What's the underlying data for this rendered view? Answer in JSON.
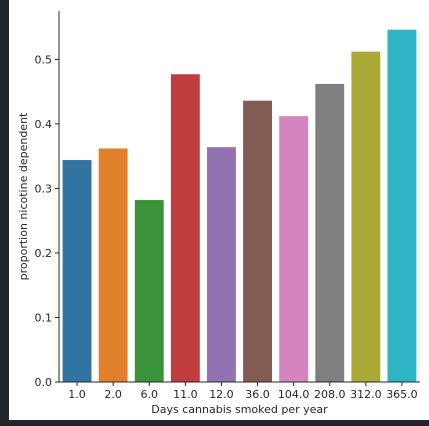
{
  "chart_data": {
    "type": "bar",
    "xlabel": "Days cannabis smoked per year",
    "ylabel": "proportion nicotine dependent",
    "categories": [
      "1.0",
      "2.0",
      "6.0",
      "11.0",
      "12.0",
      "36.0",
      "104.0",
      "208.0",
      "312.0",
      "365.0"
    ],
    "values": [
      0.344,
      0.362,
      0.282,
      0.477,
      0.364,
      0.436,
      0.412,
      0.462,
      0.512,
      0.546
    ],
    "colors": [
      "#3274a1",
      "#e1812c",
      "#3a923a",
      "#c03d3e",
      "#9372b2",
      "#845b53",
      "#d684bd",
      "#7f7f7f",
      "#a9aa35",
      "#2eb4c4"
    ],
    "ylim": [
      0,
      0.575
    ],
    "yticks": [
      "0.0",
      "0.1",
      "0.2",
      "0.3",
      "0.4",
      "0.5"
    ],
    "ytick_values": [
      0,
      0.1,
      0.2,
      0.3,
      0.4,
      0.5
    ],
    "grid": false,
    "legend": "none"
  }
}
